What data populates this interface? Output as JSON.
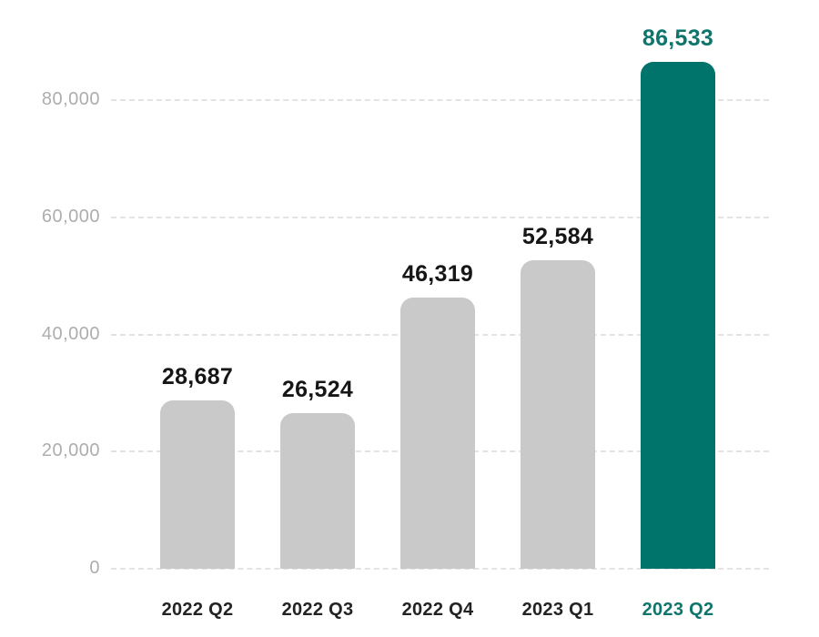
{
  "chart_data": {
    "type": "bar",
    "title": "",
    "xlabel": "",
    "ylabel": "",
    "categories": [
      "2022 Q2",
      "2022 Q3",
      "2022 Q4",
      "2023 Q1",
      "2023 Q2"
    ],
    "values": [
      28687,
      26524,
      46319,
      52584,
      86533
    ],
    "value_labels": [
      "28,687",
      "26,524",
      "46,319",
      "52,584",
      "86,533"
    ],
    "yticks": [
      0,
      20000,
      40000,
      60000,
      80000
    ],
    "ytick_labels": [
      "0",
      "20,000",
      "40,000",
      "60,000",
      "80,000"
    ],
    "ylim": [
      0,
      89000
    ],
    "grid": "horizontal-dashed",
    "legend": "none",
    "highlight_index": 4,
    "colors": {
      "bar": "#C9C9C9",
      "highlight_bar": "#00736B",
      "value_label": "#161616",
      "highlight_value_label": "#0E756D",
      "xtick_label": "#232323",
      "highlight_xtick_label": "#0E756D",
      "ytick_label": "#ADADAD",
      "gridline": "#E3E3E3",
      "background": "#FFFFFF"
    }
  }
}
